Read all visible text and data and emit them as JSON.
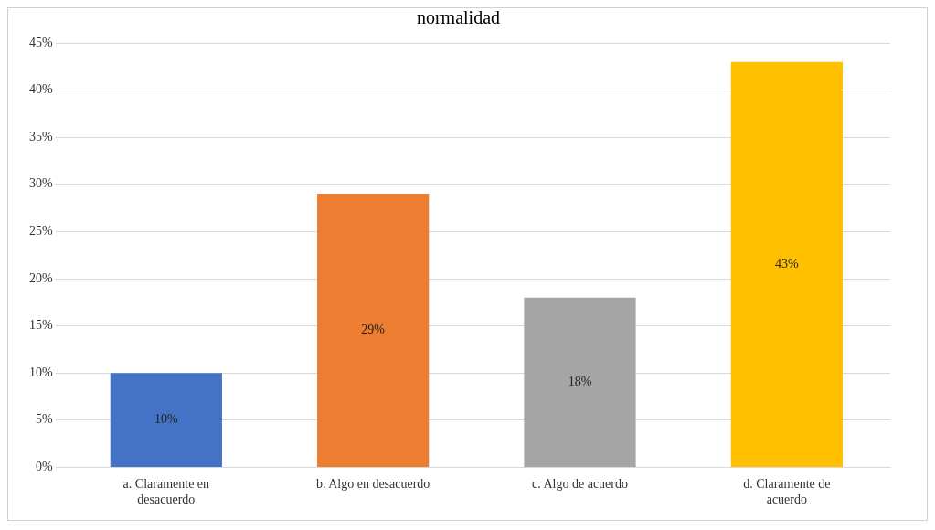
{
  "chart_data": {
    "type": "bar",
    "title": "normalidad",
    "categories": [
      "a. Claramente en desacuerdo",
      "b. Algo en desacuerdo",
      "c. Algo de acuerdo",
      "d. Claramente de acuerdo"
    ],
    "values": [
      10,
      29,
      18,
      43
    ],
    "colors": [
      "#4472c4",
      "#ed7d31",
      "#a5a5a5",
      "#ffc000"
    ],
    "value_labels": [
      "10%",
      "29%",
      "18%",
      "43%"
    ],
    "ylim": [
      0,
      45
    ],
    "yticks": [
      {
        "value": 0,
        "label": "0%"
      },
      {
        "value": 5,
        "label": "5%"
      },
      {
        "value": 10,
        "label": "10%"
      },
      {
        "value": 15,
        "label": "15%"
      },
      {
        "value": 20,
        "label": "20%"
      },
      {
        "value": 25,
        "label": "25%"
      },
      {
        "value": 30,
        "label": "30%"
      },
      {
        "value": 35,
        "label": "35%"
      },
      {
        "value": 40,
        "label": "40%"
      },
      {
        "value": 45,
        "label": "45%"
      }
    ],
    "grid": "y",
    "legend": false
  }
}
